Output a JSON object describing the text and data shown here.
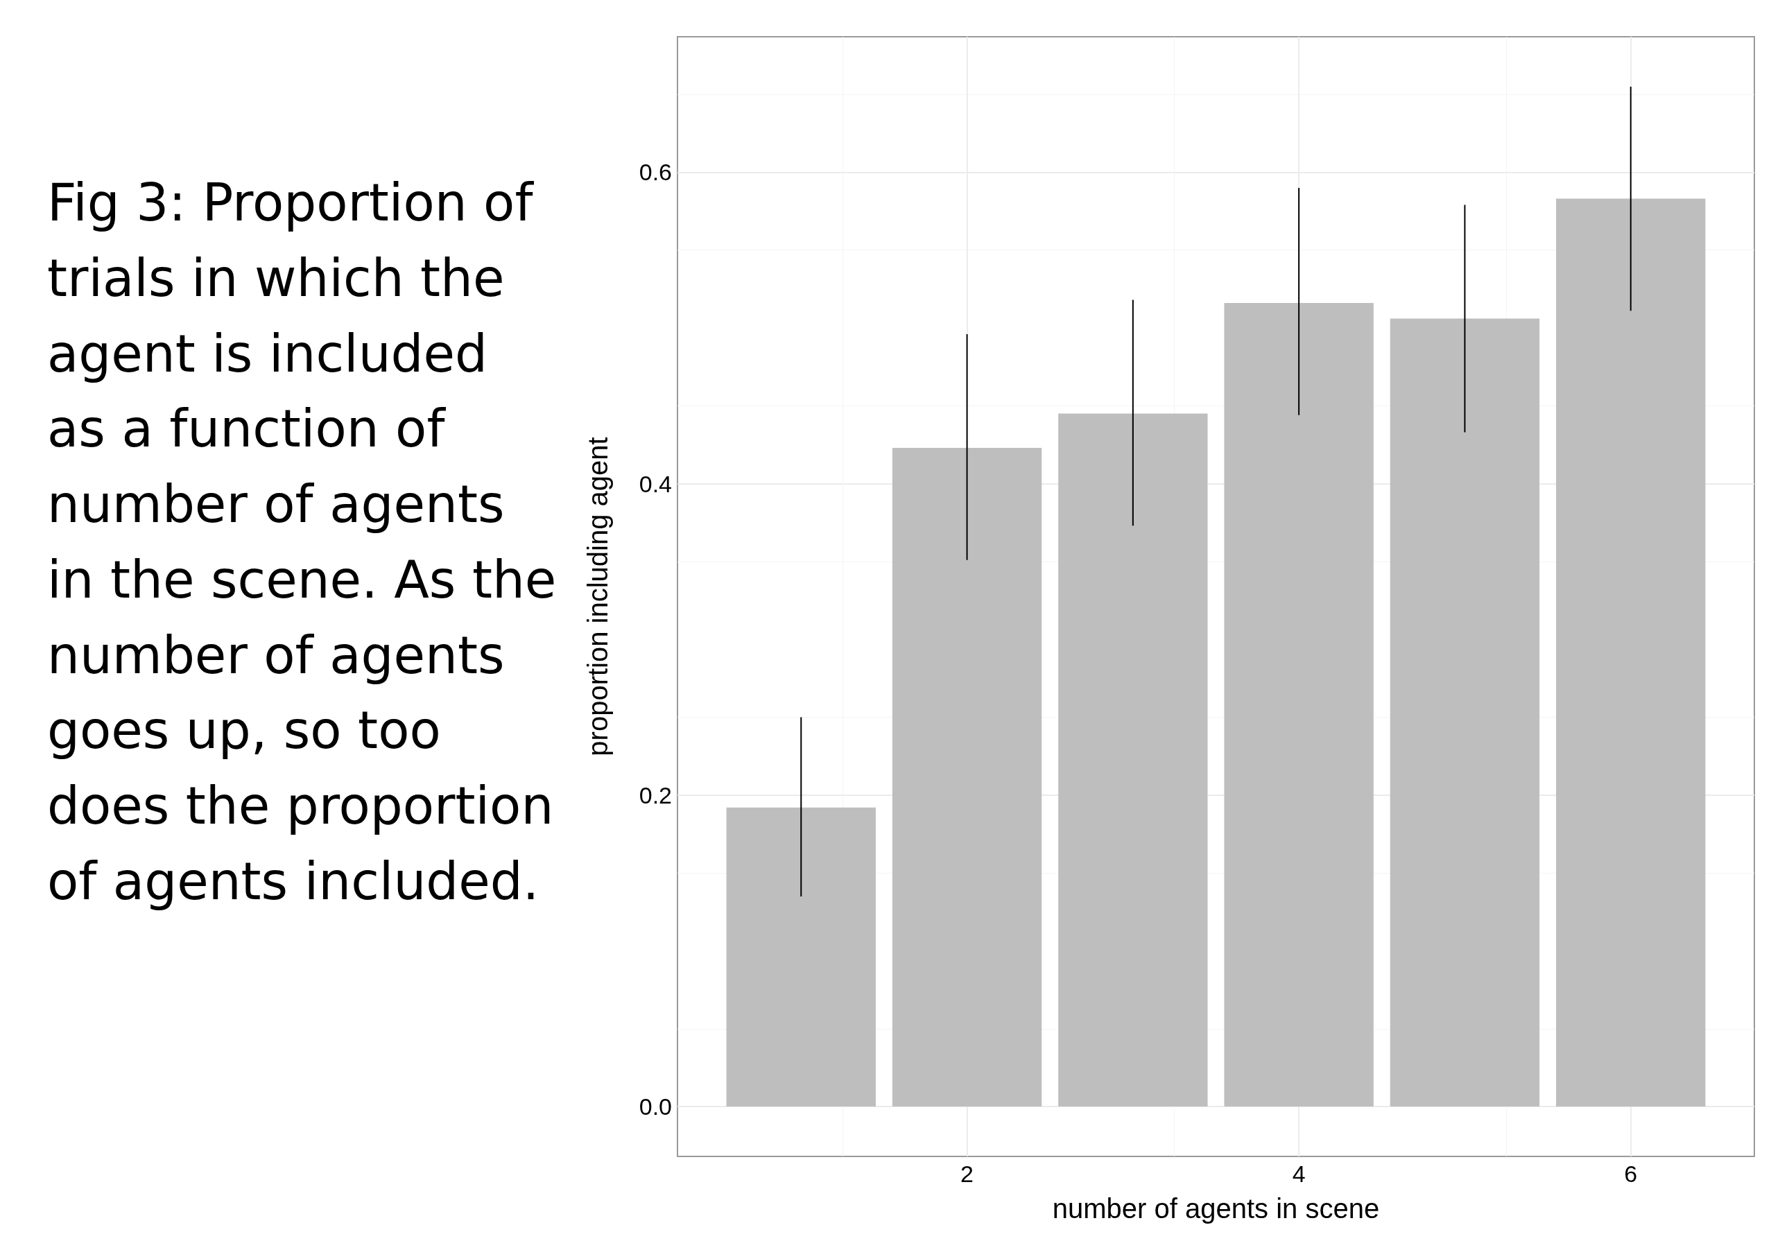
{
  "chart_data": {
    "type": "bar",
    "title": "Fig 3: Proportion of trials in which the agent is included as a function of number of agents in the scene. As the number of agents goes up, so too does the proportion of agents included.",
    "xlabel": "number of agents in scene",
    "ylabel": "proportion including agent",
    "x": [
      1,
      2,
      3,
      4,
      5,
      6
    ],
    "values": [
      0.192,
      0.423,
      0.445,
      0.516,
      0.506,
      0.583
    ],
    "errors": [
      [
        0.135,
        0.25
      ],
      [
        0.351,
        0.496
      ],
      [
        0.373,
        0.518
      ],
      [
        0.444,
        0.59
      ],
      [
        0.433,
        0.579
      ],
      [
        0.511,
        0.655
      ]
    ],
    "color": "#bebebe",
    "xlim": [
      0.255,
      6.745
    ],
    "xticks": [
      2,
      4,
      6
    ],
    "ylim": [
      -0.032,
      0.687
    ],
    "yticks": [
      {
        "value": 0,
        "label": "0.0"
      },
      {
        "value": 0.2,
        "label": "0.2"
      },
      {
        "value": 0.4,
        "label": "0.4"
      },
      {
        "value": 0.6,
        "label": "0.6"
      }
    ],
    "grid": true
  }
}
